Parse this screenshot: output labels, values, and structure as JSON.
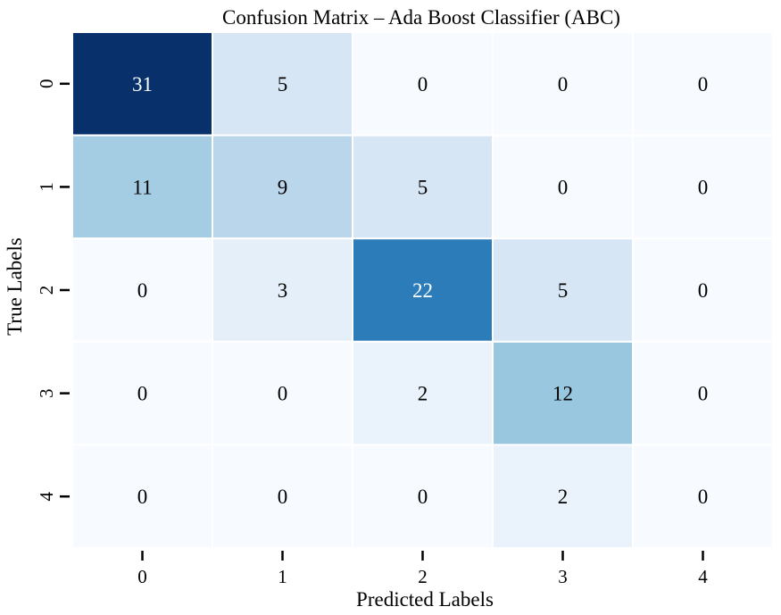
{
  "chart_data": {
    "type": "heatmap",
    "title": "Confusion Matrix – Ada Boost Classifier (ABC)",
    "xlabel": "Predicted Labels",
    "ylabel": "True Labels",
    "x_categories": [
      "0",
      "1",
      "2",
      "3",
      "4"
    ],
    "y_categories": [
      "0",
      "1",
      "2",
      "3",
      "4"
    ],
    "values": [
      [
        31,
        5,
        0,
        0,
        0
      ],
      [
        11,
        9,
        5,
        0,
        0
      ],
      [
        0,
        3,
        22,
        5,
        0
      ],
      [
        0,
        0,
        2,
        12,
        0
      ],
      [
        0,
        0,
        0,
        2,
        0
      ]
    ],
    "colormap": "Blues",
    "color_range": [
      0,
      31
    ],
    "colorbar": false,
    "grid": false,
    "colors": {
      "low": "#f7fbff",
      "high": "#08306b",
      "cell_border": "#ffffff",
      "text_dark": "#000000",
      "text_light": "#ffffff"
    }
  }
}
